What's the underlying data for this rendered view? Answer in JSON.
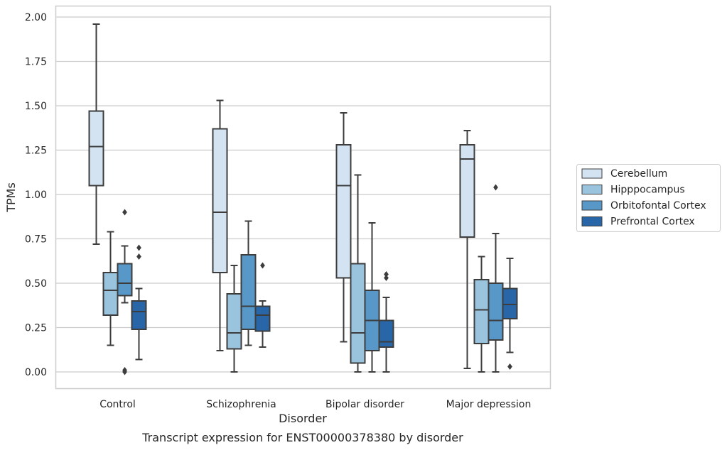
{
  "chart_data": {
    "type": "box",
    "xlabel": "Disorder",
    "ylabel": "TPMs",
    "caption": "Transcript expression for ENST00000378380 by disorder",
    "ylim": [
      -0.1,
      2.06
    ],
    "yticks": [
      "0.00",
      "0.25",
      "0.50",
      "0.75",
      "1.00",
      "1.25",
      "1.50",
      "1.75",
      "2.00"
    ],
    "ytick_values": [
      0,
      0.25,
      0.5,
      0.75,
      1.0,
      1.25,
      1.5,
      1.75,
      2.0
    ],
    "grid": "horizontal",
    "legend_position": "right",
    "categories": [
      "Control",
      "Schizophrenia",
      "Bipolar disorder",
      "Major depression"
    ],
    "series": [
      {
        "name": "Cerebellum",
        "color": "#d4e3f2",
        "boxes": [
          {
            "whislo": 0.72,
            "q1": 1.05,
            "med": 1.27,
            "q3": 1.47,
            "whishi": 1.96,
            "fliers": []
          },
          {
            "whislo": 0.12,
            "q1": 0.56,
            "med": 0.9,
            "q3": 1.37,
            "whishi": 1.53,
            "fliers": []
          },
          {
            "whislo": 0.17,
            "q1": 0.53,
            "med": 1.05,
            "q3": 1.28,
            "whishi": 1.46,
            "fliers": []
          },
          {
            "whislo": 0.02,
            "q1": 0.76,
            "med": 1.2,
            "q3": 1.28,
            "whishi": 1.36,
            "fliers": []
          }
        ]
      },
      {
        "name": "Hipppocampus",
        "color": "#9ac4de",
        "boxes": [
          {
            "whislo": 0.15,
            "q1": 0.32,
            "med": 0.46,
            "q3": 0.56,
            "whishi": 0.79,
            "fliers": []
          },
          {
            "whislo": 0.0,
            "q1": 0.13,
            "med": 0.22,
            "q3": 0.44,
            "whishi": 0.6,
            "fliers": []
          },
          {
            "whislo": 0.0,
            "q1": 0.05,
            "med": 0.22,
            "q3": 0.61,
            "whishi": 1.11,
            "fliers": []
          },
          {
            "whislo": 0.0,
            "q1": 0.16,
            "med": 0.35,
            "q3": 0.52,
            "whishi": 0.65,
            "fliers": []
          }
        ]
      },
      {
        "name": "Orbitofontal Cortex",
        "color": "#5798c8",
        "boxes": [
          {
            "whislo": 0.39,
            "q1": 0.43,
            "med": 0.5,
            "q3": 0.61,
            "whishi": 0.71,
            "fliers": [
              0.9,
              0.01,
              0.0
            ]
          },
          {
            "whislo": 0.15,
            "q1": 0.24,
            "med": 0.37,
            "q3": 0.66,
            "whishi": 0.85,
            "fliers": []
          },
          {
            "whislo": 0.0,
            "q1": 0.12,
            "med": 0.29,
            "q3": 0.46,
            "whishi": 0.84,
            "fliers": []
          },
          {
            "whislo": 0.0,
            "q1": 0.18,
            "med": 0.29,
            "q3": 0.5,
            "whishi": 0.78,
            "fliers": [
              1.04
            ]
          }
        ]
      },
      {
        "name": "Prefrontal Cortex",
        "color": "#2866a8",
        "boxes": [
          {
            "whislo": 0.07,
            "q1": 0.24,
            "med": 0.34,
            "q3": 0.4,
            "whishi": 0.47,
            "fliers": [
              0.7,
              0.65
            ]
          },
          {
            "whislo": 0.14,
            "q1": 0.23,
            "med": 0.32,
            "q3": 0.37,
            "whishi": 0.4,
            "fliers": [
              0.6
            ]
          },
          {
            "whislo": 0.0,
            "q1": 0.14,
            "med": 0.17,
            "q3": 0.29,
            "whishi": 0.42,
            "fliers": [
              0.55,
              0.53
            ]
          },
          {
            "whislo": 0.11,
            "q1": 0.3,
            "med": 0.38,
            "q3": 0.47,
            "whishi": 0.64,
            "fliers": [
              0.03
            ]
          }
        ]
      }
    ]
  }
}
